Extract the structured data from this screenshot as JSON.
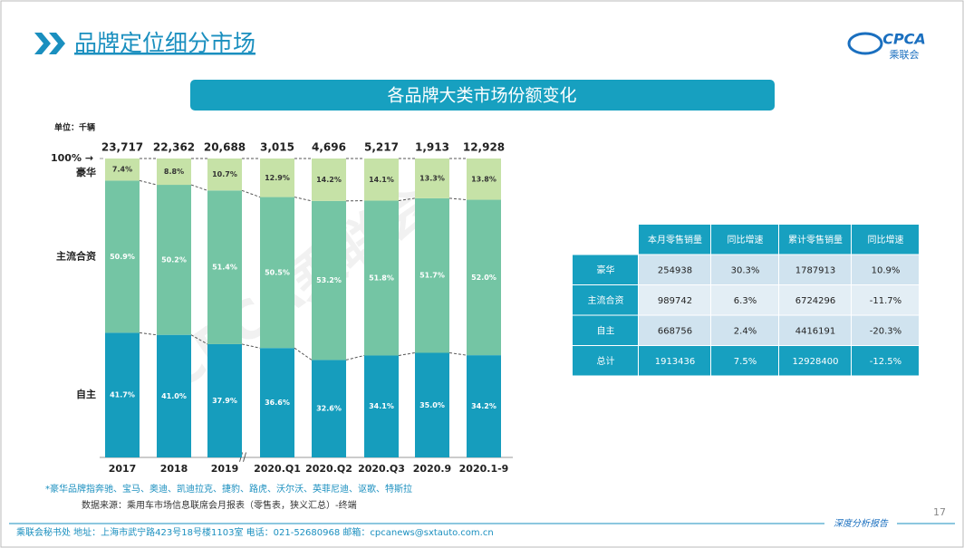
{
  "header": {
    "title": "品牌定位细分市场",
    "logo": "CPCA",
    "logo_sub": "乘联会"
  },
  "watermark": "CPCA乘联会",
  "chart_data": {
    "type": "stacked_bar",
    "title": "各品牌大类市场份额变化",
    "unit_label": "单位：千辆",
    "categories": [
      "2017",
      "2018",
      "2019",
      "2020.Q1",
      "2020.Q2",
      "2020.Q3",
      "2020.9",
      "2020.1-9"
    ],
    "totals": {
      "values": [
        23717,
        22362,
        20688,
        3015,
        4696,
        5217,
        1913,
        12928
      ],
      "value_labels": [
        "23,717",
        "22,362",
        "20,688",
        "3,015",
        "4,696",
        "5,217",
        "1,913",
        "12,928"
      ]
    },
    "series": [
      {
        "name": "自主",
        "color": "#169dbd",
        "values": [
          41.7,
          41.0,
          37.9,
          36.6,
          32.6,
          34.1,
          35.0,
          34.2
        ],
        "value_labels": [
          "41.7%",
          "41.0%",
          "37.9%",
          "36.6%",
          "32.6%",
          "34.1%",
          "35.0%",
          "34.2%"
        ]
      },
      {
        "name": "主流合资",
        "color": "#74c5a4",
        "values": [
          50.9,
          50.2,
          51.4,
          50.5,
          53.2,
          51.8,
          51.7,
          52.0
        ],
        "value_labels": [
          "50.9%",
          "50.2%",
          "51.4%",
          "50.5%",
          "53.2%",
          "51.8%",
          "51.7%",
          "52.0%"
        ]
      },
      {
        "name": "豪华",
        "color": "#c6e2a7",
        "values": [
          7.4,
          8.8,
          10.7,
          12.9,
          14.2,
          14.1,
          13.3,
          13.8
        ],
        "value_labels": [
          "7.4%",
          "8.8%",
          "10.7%",
          "12.9%",
          "14.2%",
          "14.1%",
          "13.3%",
          "13.8%"
        ]
      }
    ],
    "ylim": [
      0,
      100
    ],
    "yticks": [
      {
        "value": 100,
        "label": "100% →"
      }
    ]
  },
  "table": {
    "header": [
      "本月零售销量",
      "同比增速",
      "累计零售销量",
      "同比增速"
    ],
    "rows": [
      [
        "豪华",
        "254938",
        "30.3%",
        "1787913",
        "10.9%"
      ],
      [
        "主流合资",
        "989742",
        "6.3%",
        "6724296",
        "-11.7%"
      ],
      [
        "自主",
        "668756",
        "2.4%",
        "4416191",
        "-20.3%"
      ],
      [
        "总计",
        "1913436",
        "7.5%",
        "12928400",
        "-12.5%"
      ]
    ]
  },
  "notes": [
    "*豪华品牌指奔驰、宝马、奥迪、凯迪拉克、捷豹、路虎、沃尔沃、英菲尼迪、讴歌、特斯拉",
    "数据来源：乘用车市场信息联席会月报表（零售表，狭义汇总）-终端"
  ],
  "footer": {
    "contact": "乘联会秘书处   地址：上海市武宁路423号18号楼1103室   电话：021-52680968   邮箱：cpcanews@sxtauto.com.cn",
    "report": "深度分析报告",
    "page": "17"
  }
}
